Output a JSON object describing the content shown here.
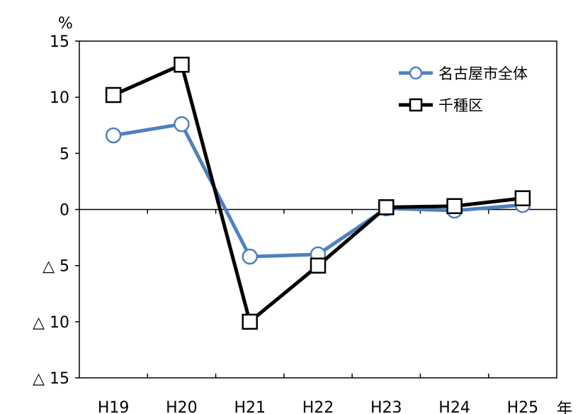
{
  "chart_data": {
    "type": "line",
    "y_unit": "%",
    "x_unit": "年",
    "categories": [
      "H19",
      "H20",
      "H21",
      "H22",
      "H23",
      "H24",
      "H25"
    ],
    "ylim": [
      -15,
      15
    ],
    "yticks": [
      15,
      10,
      5,
      0,
      -5,
      -10,
      -15
    ],
    "ytick_labels": [
      "15",
      "10",
      "5",
      "0",
      "△ 5",
      "△ 10",
      "△ 15"
    ],
    "grid": false,
    "legend_position": "top-right",
    "series": [
      {
        "name": "名古屋市全体",
        "color": "#4f81bd",
        "marker": "circle",
        "values": [
          6.6,
          7.6,
          -4.2,
          -4.0,
          0.1,
          -0.1,
          0.4
        ]
      },
      {
        "name": "千種区",
        "color": "#000000",
        "marker": "square",
        "values": [
          10.2,
          12.9,
          -10.0,
          -5.0,
          0.2,
          0.3,
          1.0
        ]
      }
    ]
  }
}
